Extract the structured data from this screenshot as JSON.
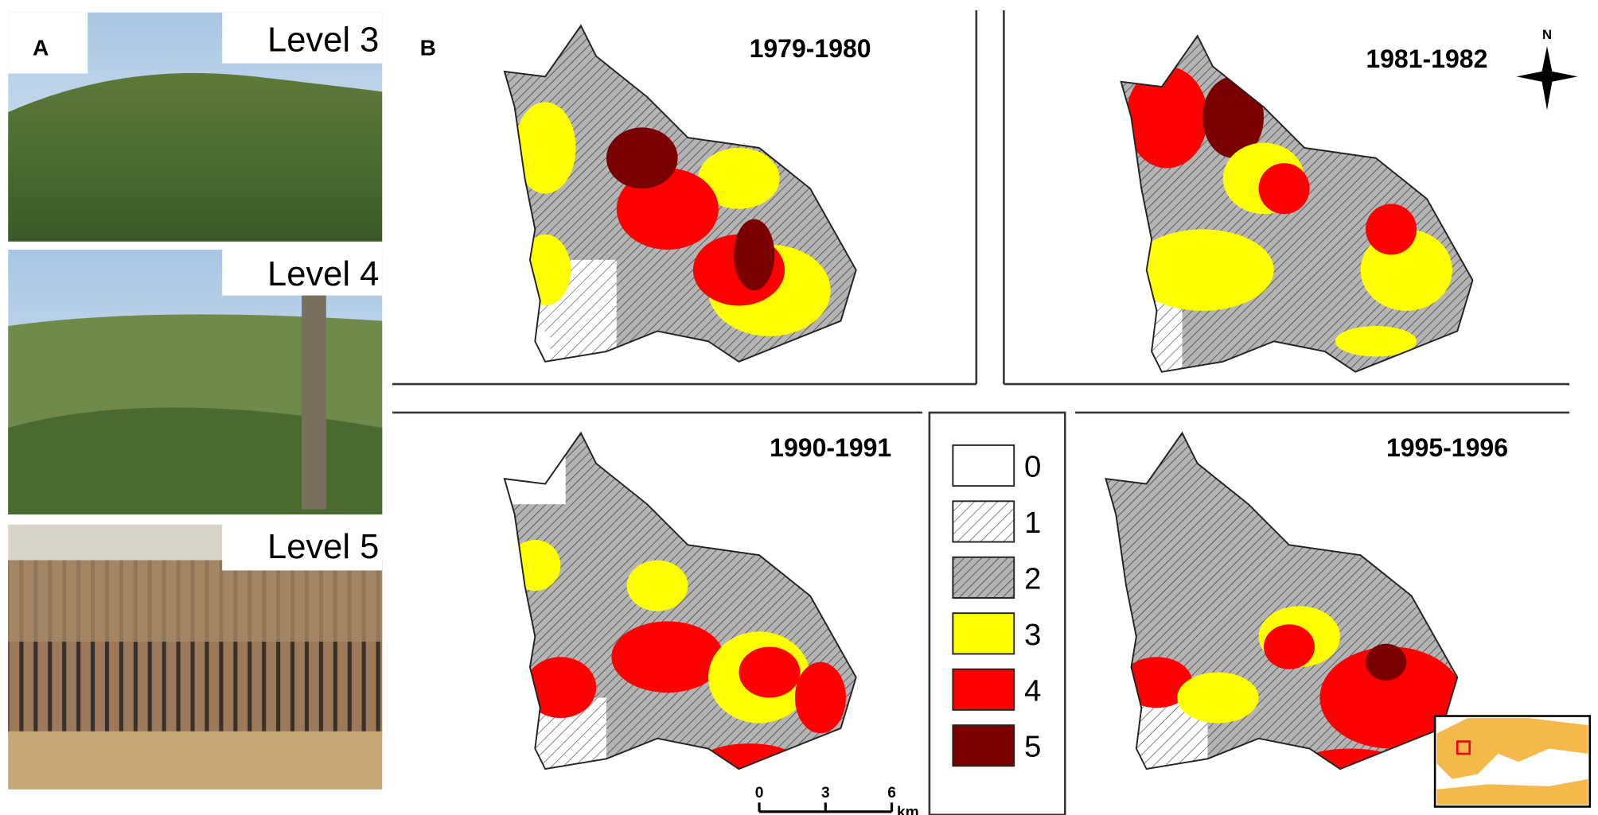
{
  "panel_a": {
    "label": "A",
    "photos": [
      {
        "label": "Level 3"
      },
      {
        "label": "Level 4"
      },
      {
        "label": "Level 5"
      }
    ]
  },
  "panel_b": {
    "label": "B",
    "maps": [
      {
        "period": "1979-1980"
      },
      {
        "period": "1981-1982"
      },
      {
        "period": "1990-1991"
      },
      {
        "period": "1995-1996"
      }
    ],
    "legend": [
      {
        "label": "0"
      },
      {
        "label": "1"
      },
      {
        "label": "2"
      },
      {
        "label": "3"
      },
      {
        "label": "4"
      },
      {
        "label": "5"
      }
    ],
    "scale_bar": {
      "ticks": [
        "0",
        "3",
        "6"
      ],
      "unit": "km"
    },
    "north": "N"
  }
}
